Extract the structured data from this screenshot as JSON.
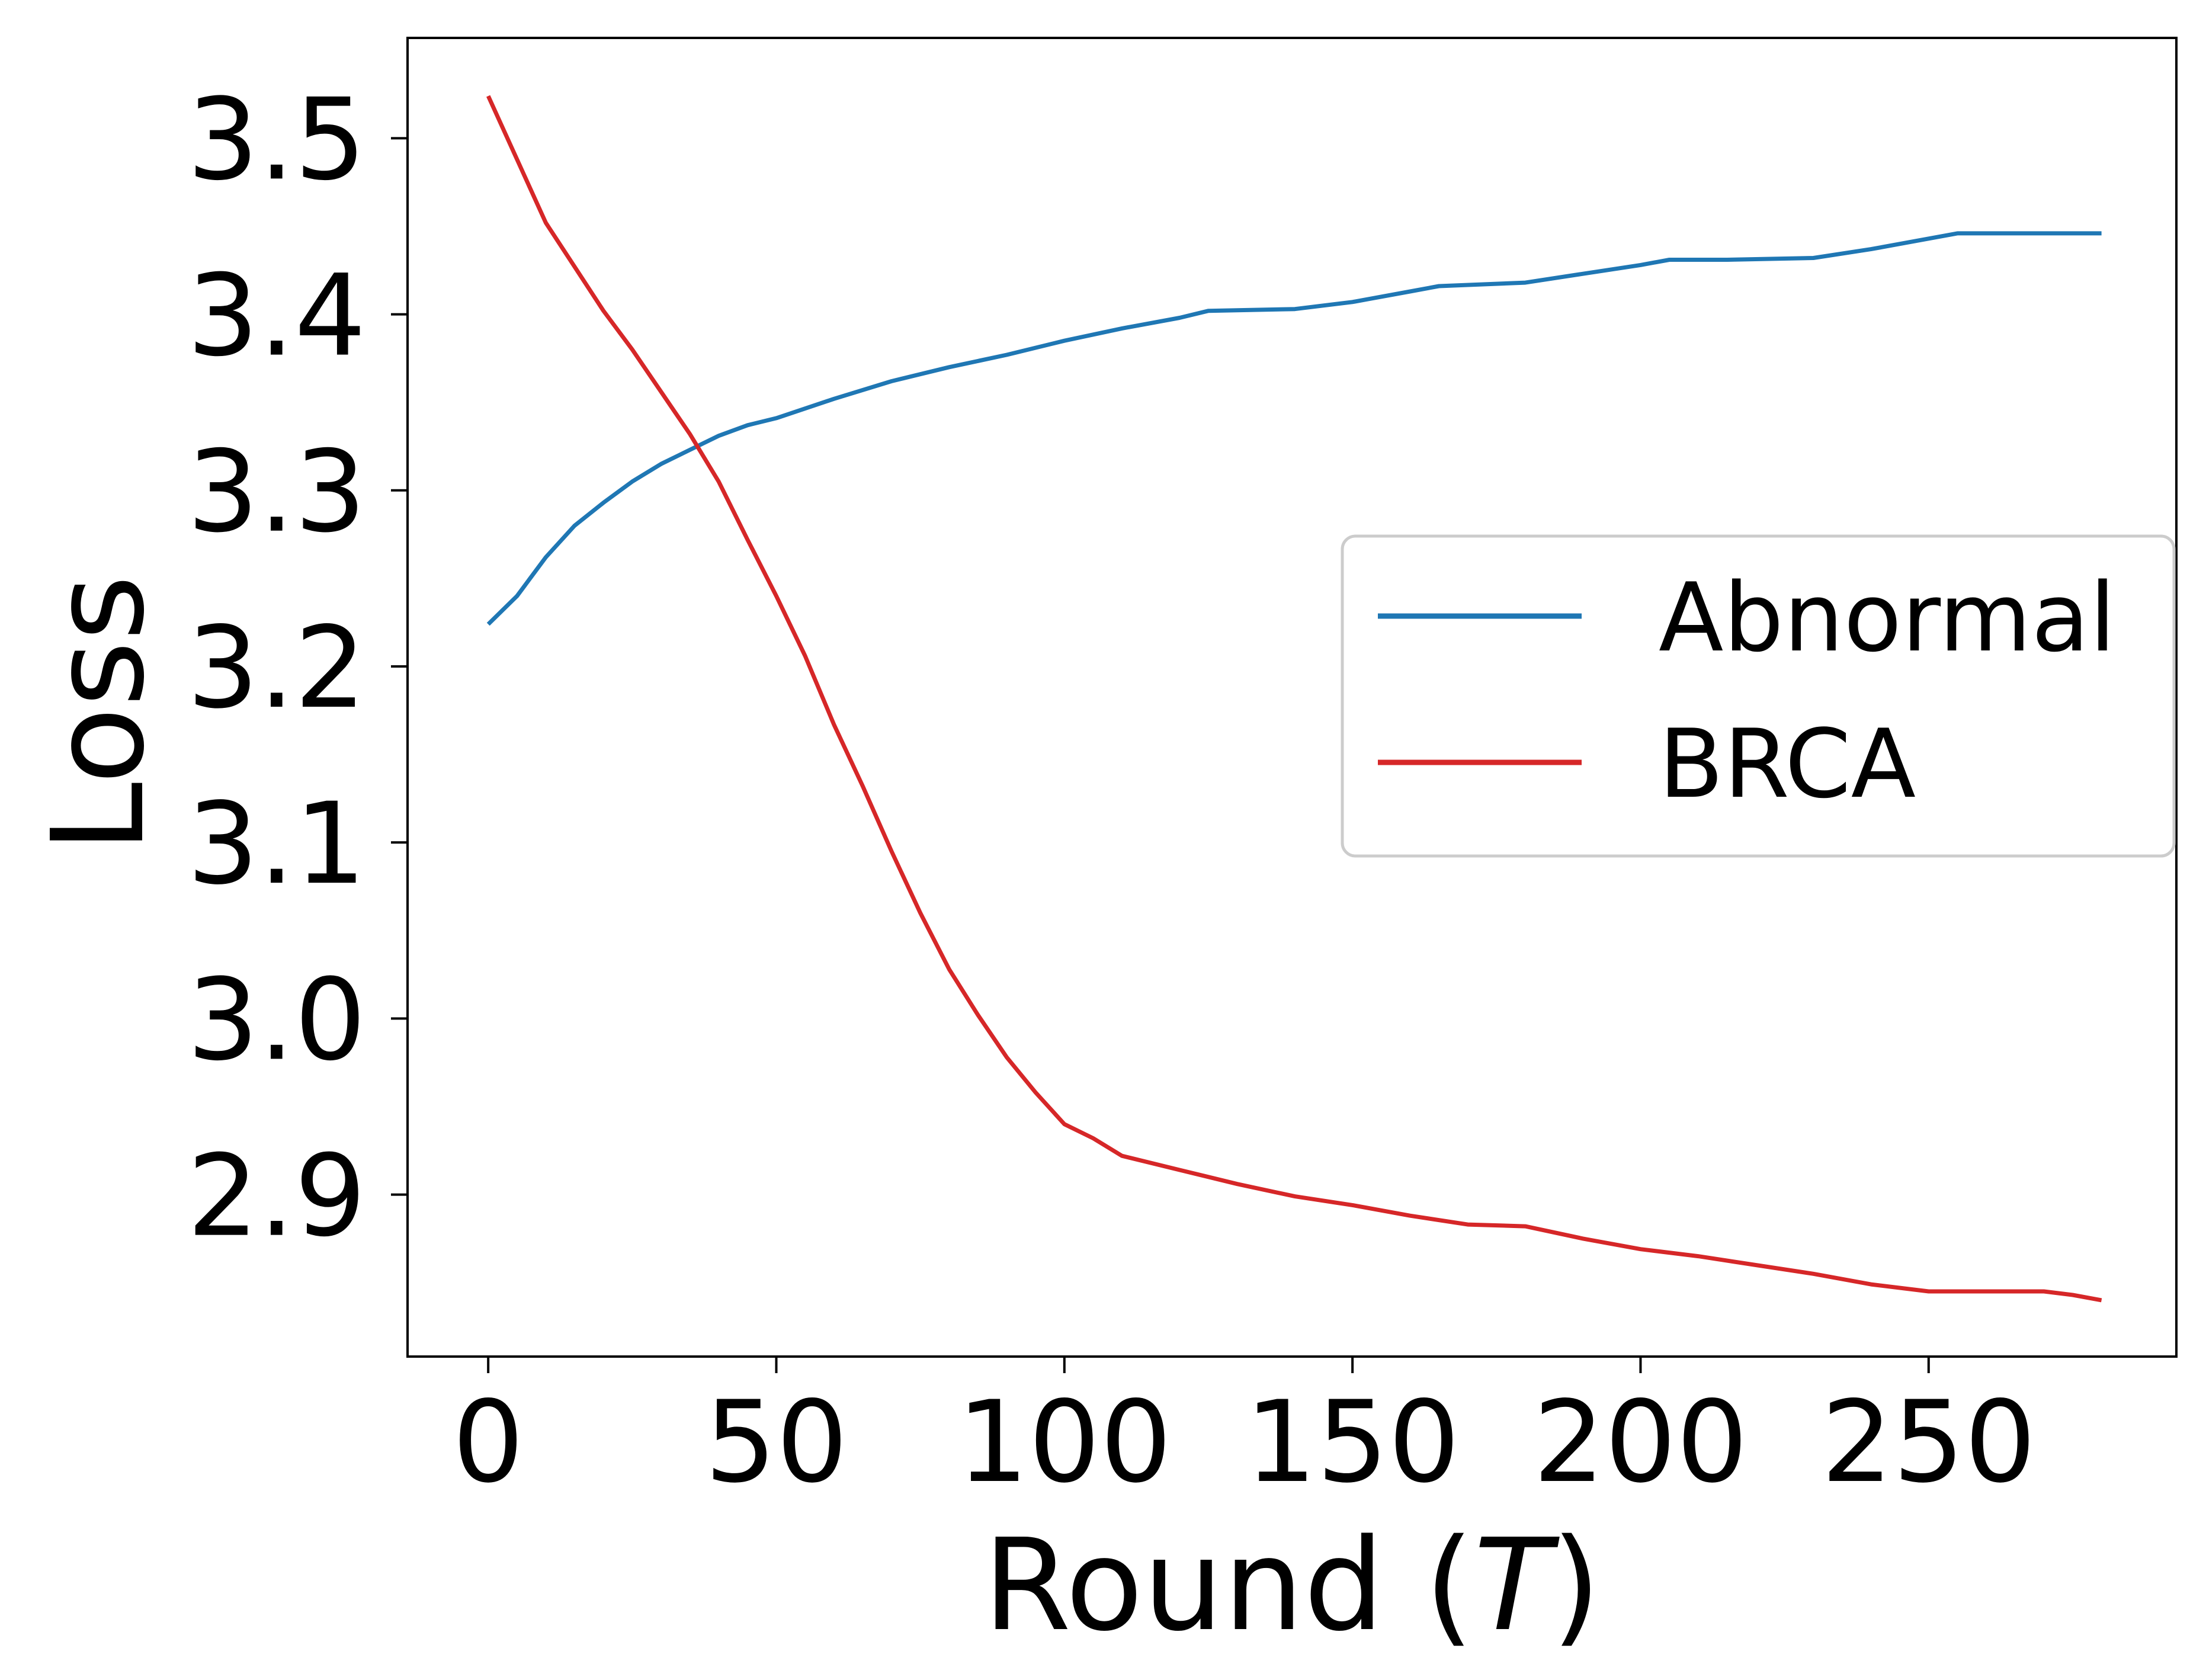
{
  "chart_data": {
    "type": "line",
    "xlabel_prefix": "Round (",
    "xlabel_var": "T",
    "xlabel_suffix": ")",
    "ylabel": "Loss",
    "xlim": [
      -14,
      293
    ],
    "ylim": [
      2.808,
      3.557
    ],
    "xticks": [
      0,
      50,
      100,
      150,
      200,
      250
    ],
    "xtick_labels": [
      "0",
      "50",
      "100",
      "150",
      "200",
      "250"
    ],
    "yticks": [
      2.9,
      3.0,
      3.1,
      3.2,
      3.3,
      3.4,
      3.5
    ],
    "ytick_labels": [
      "2.9",
      "3.0",
      "3.1",
      "3.2",
      "3.3",
      "3.4",
      "3.5"
    ],
    "grid": false,
    "legend_position": "center-right",
    "series": [
      {
        "name": "Abnormal",
        "color": "#1f77b4",
        "x": [
          0,
          5,
          10,
          15,
          20,
          25,
          30,
          35,
          40,
          45,
          50,
          60,
          70,
          80,
          90,
          100,
          110,
          120,
          125,
          140,
          150,
          160,
          165,
          180,
          190,
          200,
          205,
          215,
          230,
          240,
          250,
          255,
          270,
          280
        ],
        "y": [
          3.224,
          3.24,
          3.262,
          3.28,
          3.293,
          3.305,
          3.315,
          3.323,
          3.331,
          3.337,
          3.341,
          3.352,
          3.362,
          3.37,
          3.377,
          3.385,
          3.392,
          3.398,
          3.402,
          3.403,
          3.407,
          3.413,
          3.416,
          3.418,
          3.423,
          3.428,
          3.431,
          3.431,
          3.432,
          3.437,
          3.443,
          3.446,
          3.446,
          3.446
        ]
      },
      {
        "name": "BRCA",
        "color": "#d62728",
        "x": [
          0,
          5,
          10,
          15,
          20,
          25,
          30,
          35,
          40,
          45,
          50,
          55,
          60,
          65,
          70,
          75,
          80,
          85,
          90,
          95,
          100,
          105,
          110,
          120,
          130,
          140,
          150,
          160,
          170,
          180,
          190,
          200,
          210,
          220,
          230,
          240,
          250,
          255,
          270,
          275,
          280
        ],
        "y": [
          3.524,
          3.488,
          3.452,
          3.427,
          3.402,
          3.38,
          3.356,
          3.332,
          3.305,
          3.272,
          3.24,
          3.206,
          3.167,
          3.132,
          3.095,
          3.06,
          3.028,
          3.002,
          2.978,
          2.958,
          2.94,
          2.932,
          2.922,
          2.914,
          2.906,
          2.899,
          2.894,
          2.888,
          2.883,
          2.882,
          2.875,
          2.869,
          2.865,
          2.86,
          2.855,
          2.849,
          2.845,
          2.845,
          2.845,
          2.843,
          2.84
        ]
      }
    ]
  }
}
